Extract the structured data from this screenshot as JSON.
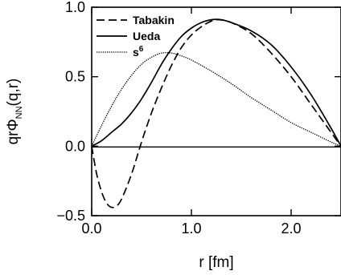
{
  "chart_data": {
    "type": "line",
    "xlabel": "r [fm]",
    "ylabel": {
      "base": "qrΦ",
      "sub": "NN",
      "tail": "(q,r)"
    },
    "xlim": [
      0,
      2.5
    ],
    "ylim": [
      -0.5,
      1.0
    ],
    "x_ticks": [
      {
        "value": 0.0,
        "label": "0.0"
      },
      {
        "value": 1.0,
        "label": "1.0"
      },
      {
        "value": 2.0,
        "label": "2.0"
      }
    ],
    "y_ticks": [
      {
        "value": -0.5,
        "label": "−0.5"
      },
      {
        "value": 0.0,
        "label": "0.0"
      },
      {
        "value": 0.5,
        "label": "0.5"
      },
      {
        "value": 1.0,
        "label": "1.0"
      }
    ],
    "grid": false,
    "zero_line": true,
    "legend_placement": "top-left",
    "series": [
      {
        "name": "Tabakin",
        "legend": {
          "base": "Tabakin",
          "sup": ""
        },
        "style": "dashed",
        "points": [
          [
            0.0,
            0.0
          ],
          [
            0.05,
            -0.2
          ],
          [
            0.1,
            -0.33
          ],
          [
            0.15,
            -0.41
          ],
          [
            0.2,
            -0.44
          ],
          [
            0.25,
            -0.43
          ],
          [
            0.3,
            -0.38
          ],
          [
            0.4,
            -0.2
          ],
          [
            0.5,
            0.03
          ],
          [
            0.6,
            0.24
          ],
          [
            0.7,
            0.42
          ],
          [
            0.8,
            0.58
          ],
          [
            0.9,
            0.71
          ],
          [
            1.0,
            0.8
          ],
          [
            1.1,
            0.86
          ],
          [
            1.2,
            0.9
          ],
          [
            1.28,
            0.91
          ],
          [
            1.4,
            0.89
          ],
          [
            1.6,
            0.81
          ],
          [
            1.8,
            0.67
          ],
          [
            2.0,
            0.5
          ],
          [
            2.2,
            0.3
          ],
          [
            2.4,
            0.1
          ],
          [
            2.5,
            0.0
          ]
        ]
      },
      {
        "name": "Ueda",
        "legend": {
          "base": "Ueda",
          "sup": ""
        },
        "style": "solid",
        "points": [
          [
            0.0,
            0.0
          ],
          [
            0.1,
            0.04
          ],
          [
            0.2,
            0.1
          ],
          [
            0.3,
            0.16
          ],
          [
            0.4,
            0.24
          ],
          [
            0.5,
            0.34
          ],
          [
            0.6,
            0.46
          ],
          [
            0.7,
            0.59
          ],
          [
            0.8,
            0.7
          ],
          [
            0.9,
            0.79
          ],
          [
            1.0,
            0.85
          ],
          [
            1.1,
            0.89
          ],
          [
            1.2,
            0.91
          ],
          [
            1.3,
            0.91
          ],
          [
            1.4,
            0.89
          ],
          [
            1.6,
            0.83
          ],
          [
            1.8,
            0.73
          ],
          [
            2.0,
            0.57
          ],
          [
            2.2,
            0.37
          ],
          [
            2.4,
            0.13
          ],
          [
            2.5,
            0.0
          ]
        ]
      },
      {
        "name": "s6",
        "legend": {
          "base": "s",
          "sup": "6"
        },
        "style": "dotted",
        "points": [
          [
            0.0,
            0.0
          ],
          [
            0.1,
            0.15
          ],
          [
            0.2,
            0.29
          ],
          [
            0.3,
            0.41
          ],
          [
            0.4,
            0.51
          ],
          [
            0.5,
            0.59
          ],
          [
            0.6,
            0.64
          ],
          [
            0.7,
            0.67
          ],
          [
            0.8,
            0.67
          ],
          [
            0.9,
            0.65
          ],
          [
            1.0,
            0.62
          ],
          [
            1.2,
            0.54
          ],
          [
            1.4,
            0.45
          ],
          [
            1.6,
            0.35
          ],
          [
            1.8,
            0.26
          ],
          [
            2.0,
            0.17
          ],
          [
            2.2,
            0.1
          ],
          [
            2.4,
            0.03
          ],
          [
            2.5,
            0.0
          ]
        ]
      }
    ]
  }
}
